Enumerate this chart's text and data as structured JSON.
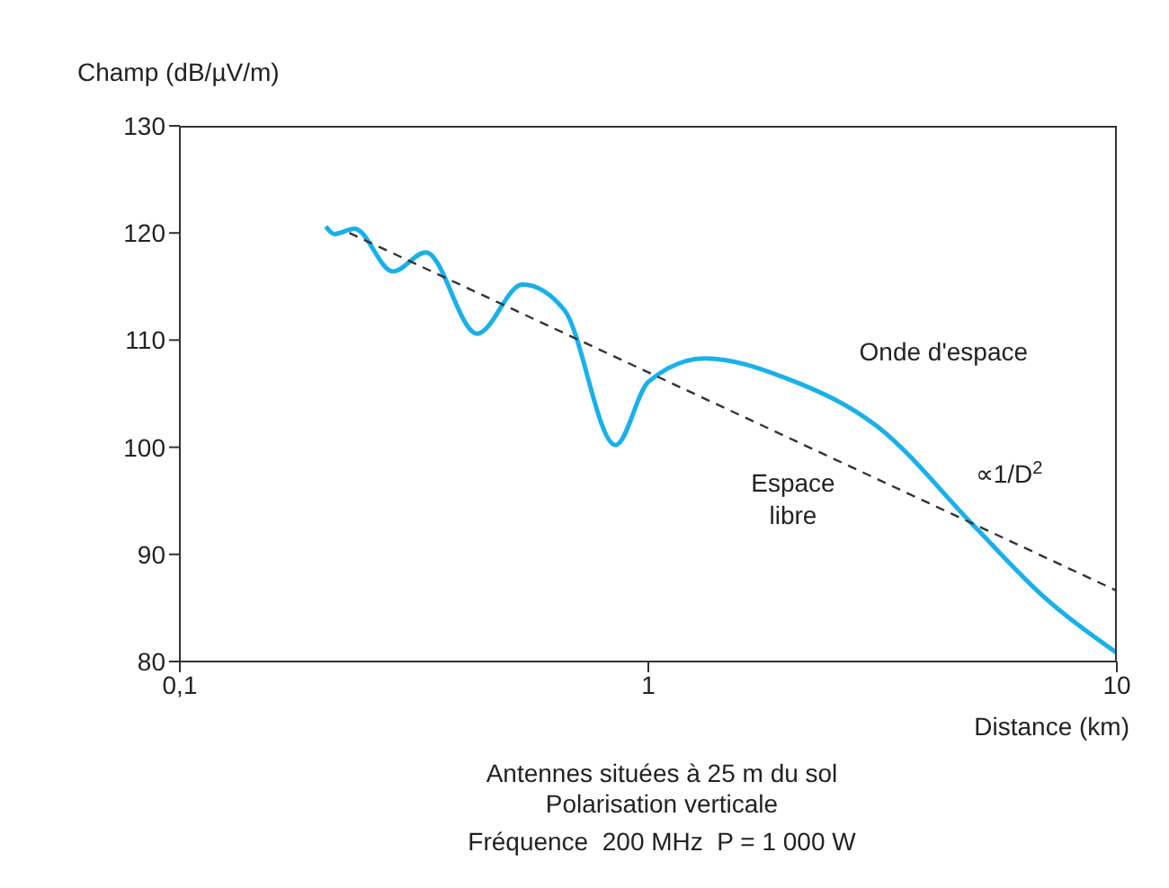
{
  "chart_data": {
    "type": "line",
    "ylabel": "Champ (dB/µV/m)",
    "xlabel": "Distance (km)",
    "log": "x",
    "xlim": [
      0.1,
      10
    ],
    "xticks": [
      {
        "value": 0.1,
        "label": "0,1"
      },
      1,
      10
    ],
    "ylim": [
      80,
      130
    ],
    "yticks": [
      80,
      90,
      100,
      110,
      120,
      130
    ],
    "grid": false,
    "legend": false,
    "marker": "none",
    "series": [
      {
        "name": "Onde d'espace",
        "color": "#1ab0e8",
        "line_style": "solid",
        "x": [
          0.205,
          0.214,
          0.236,
          0.285,
          0.335,
          0.431,
          0.539,
          0.662,
          0.851,
          1,
          1.32,
          1.98,
          3.09,
          4.97,
          6.92,
          10
        ],
        "values": [
          120.6,
          119.9,
          120.4,
          116.4,
          118.2,
          110.6,
          115.2,
          112.8,
          100.2,
          106.1,
          108.3,
          106.4,
          101.9,
          92.6,
          86.2,
          80.8
        ]
      },
      {
        "name": "Espace libre",
        "color": "#333333",
        "line_style": "dashed",
        "x": [
          0.23,
          10
        ],
        "values": [
          120,
          86.6
        ]
      }
    ],
    "annotations": [
      "∝1/D$^{2}$",
      "Antennes situées à 25 m du sol",
      "Polarisation verticale",
      "Fréquence  200 MHz  P = 1 000 W"
    ]
  }
}
